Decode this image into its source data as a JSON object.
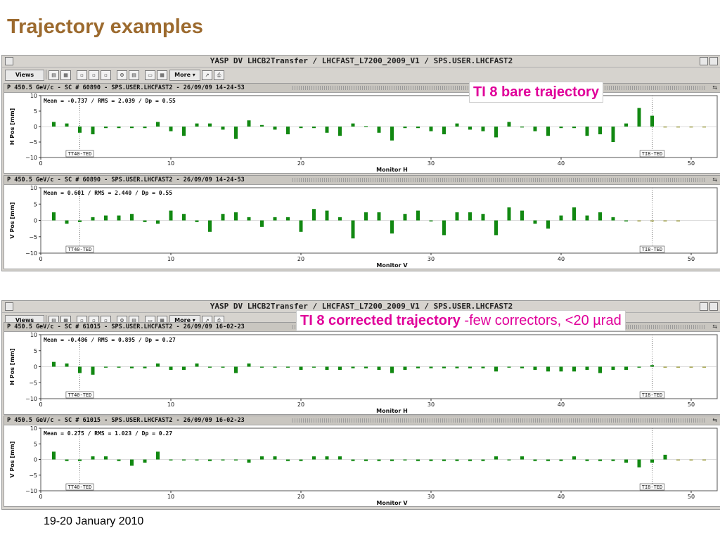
{
  "slide": {
    "title": "Trajectory examples",
    "date": "19-20 January 2010"
  },
  "windows": [
    {
      "title": "YASP DV LHCB2Transfer / LHCFAST_L7200_2009_V1 / SPS.USER.LHCFAST2",
      "toolbar": {
        "views_label": "Views",
        "more_label": "More"
      },
      "callout": {
        "strong": "TI 8 bare trajectory",
        "light": ""
      }
    },
    {
      "title": "YASP DV LHCB2Transfer / LHCFAST_L7200_2009_V1 / SPS.USER.LHCFAST2",
      "toolbar": {
        "views_label": "Views",
        "more_label": "More"
      },
      "callout": {
        "strong": "TI 8 corrected trajectory",
        "light": " -few correctors, <20 µrad"
      }
    }
  ],
  "chart_data": [
    {
      "type": "bar",
      "header": "P 450.5 GeV/c - SC # 60890 - SPS.USER.LHCFAST2 - 26/09/09 14-24-53",
      "stats": "Mean =  -0.737 / RMS =   2.039 / Dp =   0.55",
      "xlabel": "Monitor H",
      "ylabel": "H Pos [mm]",
      "xlim": [
        0,
        52
      ],
      "ylim": [
        -10,
        10
      ],
      "xticks": [
        0,
        10,
        20,
        30,
        40,
        50
      ],
      "yticks": [
        -10,
        -5,
        0,
        5,
        10
      ],
      "markers": [
        {
          "x": 3,
          "label": "TT40-TED"
        },
        {
          "x": 47,
          "label": "TI8-TED"
        }
      ],
      "bar_color": "#118811",
      "x": [
        1,
        2,
        3,
        4,
        5,
        6,
        7,
        8,
        9,
        10,
        11,
        12,
        13,
        14,
        15,
        16,
        17,
        18,
        19,
        20,
        21,
        22,
        23,
        24,
        25,
        26,
        27,
        28,
        29,
        30,
        31,
        32,
        33,
        34,
        35,
        36,
        37,
        38,
        39,
        40,
        41,
        42,
        43,
        44,
        45,
        46,
        47,
        48,
        49,
        50,
        51
      ],
      "values": [
        1.5,
        1,
        -2,
        -2.5,
        -0.5,
        -0.5,
        -0.5,
        -0.5,
        1.5,
        -1.5,
        -3,
        1,
        1,
        -1,
        -4,
        2,
        0.5,
        -1,
        -2.5,
        -0.5,
        -0.5,
        -2,
        -3,
        1,
        -0.2,
        -2,
        -4.5,
        -0.5,
        -0.5,
        -1.5,
        -2.5,
        1,
        -1,
        -1.5,
        -3.5,
        1.5,
        -0.3,
        -1.5,
        -3,
        -0.5,
        -0.5,
        -3,
        -2.5,
        -5,
        1,
        6,
        3.5,
        -0.3,
        -0.3,
        -0.3,
        -0.3
      ],
      "dim_from": 48
    },
    {
      "type": "bar",
      "header": "P 450.5 GeV/c - SC # 60890 - SPS.USER.LHCFAST2 - 26/09/09 14-24-53",
      "stats": "Mean =   0.601 / RMS =   2.440 / Dp =   0.55",
      "xlabel": "Monitor V",
      "ylabel": "V Pos [mm]",
      "xlim": [
        0,
        52
      ],
      "ylim": [
        -10,
        10
      ],
      "xticks": [
        0,
        10,
        20,
        30,
        40,
        50
      ],
      "yticks": [
        -10,
        -5,
        0,
        5,
        10
      ],
      "markers": [
        {
          "x": 3,
          "label": "TT40-TED"
        },
        {
          "x": 47,
          "label": "TI8-TED"
        }
      ],
      "bar_color": "#118811",
      "x": [
        1,
        2,
        3,
        4,
        5,
        6,
        7,
        8,
        9,
        10,
        11,
        12,
        13,
        14,
        15,
        16,
        17,
        18,
        19,
        20,
        21,
        22,
        23,
        24,
        25,
        26,
        27,
        28,
        29,
        30,
        31,
        32,
        33,
        34,
        35,
        36,
        37,
        38,
        39,
        40,
        41,
        42,
        43,
        44,
        45,
        46,
        47,
        48,
        49
      ],
      "values": [
        2.5,
        -1,
        -0.5,
        1,
        1.5,
        1.5,
        2,
        -0.5,
        -1,
        3,
        2,
        -0.5,
        -3.5,
        2,
        2.5,
        1,
        -2,
        1,
        1,
        -3.5,
        3.5,
        3,
        1,
        -5.5,
        2.5,
        2.5,
        -4,
        2,
        3,
        -0.3,
        -4.5,
        2.5,
        2.5,
        2,
        -4.5,
        4,
        3,
        -1,
        -2.5,
        1.5,
        4,
        1.5,
        2.5,
        1,
        -0.3,
        -0.3,
        -0.3,
        -0.3,
        -0.3
      ],
      "dim_from": 46
    },
    {
      "type": "bar",
      "header": "P 450.5 GeV/c - SC # 61015 - SPS.USER.LHCFAST2 - 26/09/09 16-02-23",
      "stats": "Mean =  -0.486 / RMS =   0.895 / Dp =   0.27",
      "xlabel": "Monitor H",
      "ylabel": "H Pos [mm]",
      "xlim": [
        0,
        52
      ],
      "ylim": [
        -10,
        10
      ],
      "xticks": [
        0,
        10,
        20,
        30,
        40,
        50
      ],
      "yticks": [
        -10,
        -5,
        0,
        5,
        10
      ],
      "markers": [
        {
          "x": 3,
          "label": "TT40-TED"
        },
        {
          "x": 47,
          "label": "TI8-TED"
        }
      ],
      "bar_color": "#118811",
      "x": [
        1,
        2,
        3,
        4,
        5,
        6,
        7,
        8,
        9,
        10,
        11,
        12,
        13,
        14,
        15,
        16,
        17,
        18,
        19,
        20,
        21,
        22,
        23,
        24,
        25,
        26,
        27,
        28,
        29,
        30,
        31,
        32,
        33,
        34,
        35,
        36,
        37,
        38,
        39,
        40,
        41,
        42,
        43,
        44,
        45,
        46,
        47,
        48,
        49,
        50,
        51
      ],
      "values": [
        1.5,
        1,
        -2,
        -2.5,
        -0.3,
        -0.3,
        -0.5,
        -0.5,
        1,
        -1,
        -1,
        1,
        -0.3,
        -0.3,
        -2,
        1,
        -0.3,
        -0.3,
        -0.3,
        -1,
        -0.3,
        -1,
        -1,
        -0.5,
        -0.5,
        -1,
        -2,
        -1,
        -0.5,
        -0.5,
        -0.5,
        -0.5,
        -0.5,
        -0.5,
        -1.5,
        -0.3,
        -0.5,
        -1,
        -1.5,
        -1.5,
        -1.5,
        -1,
        -2,
        -1,
        -1,
        -0.3,
        0.5,
        -0.3,
        -0.3,
        -0.3,
        -0.3
      ],
      "dim_from": 48
    },
    {
      "type": "bar",
      "header": "P 450.5 GeV/c - SC # 61015 - SPS.USER.LHCFAST2 - 26/09/09 16-02-23",
      "stats": "Mean =   0.275 / RMS =   1.023 / Dp =   0.27",
      "xlabel": "Monitor V",
      "ylabel": "V Pos [mm]",
      "xlim": [
        0,
        52
      ],
      "ylim": [
        -10,
        10
      ],
      "xticks": [
        0,
        10,
        20,
        30,
        40,
        50
      ],
      "yticks": [
        -10,
        -5,
        0,
        5,
        10
      ],
      "markers": [
        {
          "x": 3,
          "label": "TT40-TED"
        },
        {
          "x": 47,
          "label": "TI8-TED"
        }
      ],
      "bar_color": "#118811",
      "x": [
        1,
        2,
        3,
        4,
        5,
        6,
        7,
        8,
        9,
        10,
        11,
        12,
        13,
        14,
        15,
        16,
        17,
        18,
        19,
        20,
        21,
        22,
        23,
        24,
        25,
        26,
        27,
        28,
        29,
        30,
        31,
        32,
        33,
        34,
        35,
        36,
        37,
        38,
        39,
        40,
        41,
        42,
        43,
        44,
        45,
        46,
        47,
        48,
        49,
        50,
        51
      ],
      "values": [
        2.5,
        -0.5,
        -0.5,
        1,
        1,
        -0.5,
        -2,
        -1,
        2.5,
        -0.3,
        -0.3,
        -0.3,
        -0.5,
        -0.3,
        -0.3,
        -1,
        1,
        1,
        -0.5,
        -0.5,
        1,
        1,
        1,
        -0.5,
        -0.5,
        -0.5,
        -0.5,
        -0.3,
        -0.5,
        -0.5,
        -0.5,
        -0.5,
        -0.5,
        -0.5,
        1,
        -0.3,
        1,
        -0.5,
        -0.5,
        -0.5,
        1,
        -0.5,
        -0.5,
        -0.5,
        -1,
        -2.5,
        -1,
        1.5,
        -0.3,
        -0.3,
        -0.3
      ],
      "dim_from": 49
    }
  ]
}
